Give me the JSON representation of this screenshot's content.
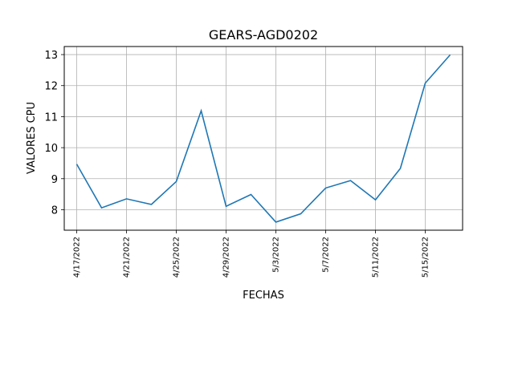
{
  "chart_data": {
    "type": "line",
    "title": "GEARS-AGD0202",
    "xlabel": "FECHAS",
    "ylabel": "VALORES CPU",
    "x": [
      "4/17/2022",
      "4/19/2022",
      "4/21/2022",
      "4/23/2022",
      "4/25/2022",
      "4/27/2022",
      "4/29/2022",
      "5/1/2022",
      "5/3/2022",
      "5/5/2022",
      "5/7/2022",
      "5/9/2022",
      "5/11/2022",
      "5/13/2022",
      "5/15/2022",
      "5/17/2022"
    ],
    "series": [
      {
        "values": [
          9.47,
          8.06,
          8.35,
          8.17,
          8.91,
          11.19,
          8.11,
          8.49,
          7.6,
          7.87,
          8.7,
          8.94,
          8.32,
          9.33,
          12.08,
          12.99
        ]
      }
    ],
    "xticks": [
      "4/17/2022",
      "4/21/2022",
      "4/25/2022",
      "4/29/2022",
      "5/3/2022",
      "5/7/2022",
      "5/11/2022",
      "5/15/2022"
    ],
    "yticks": [
      8,
      9,
      10,
      11,
      12,
      13
    ],
    "xlim": [
      "4/16/2022",
      "5/18/2022"
    ],
    "ylim": [
      7.34,
      13.26
    ],
    "grid": true,
    "line_color": "#1f77b4"
  }
}
